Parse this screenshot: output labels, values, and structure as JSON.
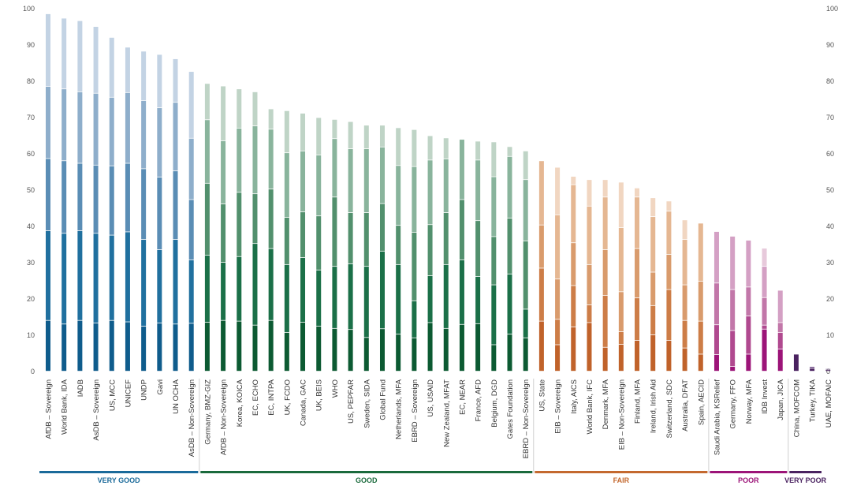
{
  "chart_data": {
    "type": "bar",
    "stacked": true,
    "title": "",
    "xlabel": "",
    "ylabel": "",
    "ylim": [
      0,
      100
    ],
    "yticks": [
      0,
      10,
      20,
      30,
      40,
      50,
      60,
      70,
      80,
      90,
      100
    ],
    "y_axis_sides": "left and right",
    "grid": false,
    "groups": [
      {
        "label": "VERY GOOD",
        "color": "#1a6a9a",
        "shades": [
          "#0f5c8c",
          "#20709f",
          "#5a8db5",
          "#8eaecb",
          "#c3d3e4"
        ],
        "bars": [
          {
            "name": "AfDB – Sovereign",
            "segments": [
              14,
              24.7,
              19.9,
              19.9,
              20.0
            ]
          },
          {
            "name": "World Bank, IDA",
            "segments": [
              13,
              25,
              20,
              19.8,
              19.5
            ]
          },
          {
            "name": "IADB",
            "segments": [
              14,
              24.7,
              18.6,
              19.7,
              19.6
            ]
          },
          {
            "name": "AsDB – Sovereign",
            "segments": [
              13.3,
              24.7,
              18.8,
              19.8,
              18.4
            ]
          },
          {
            "name": "US, MCC",
            "segments": [
              14,
              23.5,
              19.1,
              18.9,
              16.5
            ]
          },
          {
            "name": "UNICEF",
            "segments": [
              13.6,
              24.8,
              18.9,
              19.5,
              12.5
            ]
          },
          {
            "name": "UNDP",
            "segments": [
              12.4,
              23.9,
              19.5,
              18.8,
              13.6
            ]
          },
          {
            "name": "Gavi",
            "segments": [
              13.3,
              20.2,
              20,
              19.1,
              14.7
            ]
          },
          {
            "name": "UN OCHA",
            "segments": [
              13,
              23.3,
              18.9,
              18.9,
              12
            ]
          },
          {
            "name": "AsDB – Non-Sovereign",
            "segments": [
              13.2,
              17.5,
              16.6,
              16.9,
              18.4
            ]
          }
        ]
      },
      {
        "label": "GOOD",
        "color": "#1a6a3c",
        "shades": [
          "#0c5a32",
          "#1b7048",
          "#52906d",
          "#89b49c",
          "#bfd4c6"
        ],
        "bars": [
          {
            "name": "Germany, BMZ-GIZ",
            "segments": [
              13.5,
              18.5,
              19.8,
              17.5,
              10
            ]
          },
          {
            "name": "AfDB – Non-Sovereign",
            "segments": [
              14,
              16,
              16.1,
              17.4,
              15.1
            ]
          },
          {
            "name": "Korea, KOICA",
            "segments": [
              13.8,
              17.8,
              17.7,
              17.7,
              10.8
            ]
          },
          {
            "name": "EC, ECHO",
            "segments": [
              12.7,
              22.5,
              13.7,
              18.7,
              9.4
            ]
          },
          {
            "name": "EC, INTPA",
            "segments": [
              14,
              19.8,
              16.4,
              16.5,
              5.6
            ]
          },
          {
            "name": "UK, FCDO",
            "segments": [
              10.7,
              18.7,
              13,
              17.8,
              11.6
            ]
          },
          {
            "name": "Canada, GAC",
            "segments": [
              13.5,
              17.8,
              12.6,
              16.8,
              10.4
            ]
          },
          {
            "name": "UK, BEIS",
            "segments": [
              12.4,
              15.5,
              14.9,
              16.8,
              10.3
            ]
          },
          {
            "name": "WHO",
            "segments": [
              11.8,
              17.1,
              19.1,
              16.1,
              5.3
            ]
          },
          {
            "name": "US, PEPFAR",
            "segments": [
              11.5,
              18.1,
              14.1,
              17.6,
              7.5
            ]
          },
          {
            "name": "Sweden, SIDA",
            "segments": [
              9.3,
              19.6,
              14.8,
              17.6,
              6.5
            ]
          },
          {
            "name": "Global Fund",
            "segments": [
              11.7,
              21.4,
              13.1,
              15.6,
              6
            ]
          },
          {
            "name": "Netherlands, MFA",
            "segments": [
              10.2,
              19.2,
              10.8,
              16.5,
              10.4
            ]
          },
          {
            "name": "EBRD – Sovereign",
            "segments": [
              9.2,
              10.2,
              18.9,
              18.1,
              10.2
            ]
          },
          {
            "name": "US, USAID",
            "segments": [
              13.4,
              12.9,
              14.1,
              17.8,
              6.7
            ]
          },
          {
            "name": "New Zealand, MFAT",
            "segments": [
              11.8,
              17.6,
              14.3,
              14.8,
              5.8
            ]
          },
          {
            "name": "EC, NEAR",
            "segments": [
              12.9,
              17.8,
              16.6,
              16.6,
              0
            ]
          },
          {
            "name": "France, AFD",
            "segments": [
              13.1,
              13,
              15.4,
              16.7,
              5.2
            ]
          },
          {
            "name": "Belgium, DGD",
            "segments": [
              7.3,
              16.5,
              13.3,
              16.5,
              9.6
            ]
          },
          {
            "name": "Gates Foundation",
            "segments": [
              10.2,
              16.6,
              15.4,
              17,
              2.7
            ]
          },
          {
            "name": "EBRD – Non-Sovereign",
            "segments": [
              9.2,
              7.9,
              18.8,
              16.9,
              7.9
            ]
          }
        ]
      },
      {
        "label": "FAIR",
        "color": "#c4692f",
        "shades": [
          "#c0622a",
          "#cd7d47",
          "#d99b6c",
          "#e5b792",
          "#f1d6c1"
        ],
        "bars": [
          {
            "name": "US, State",
            "segments": [
              13.8,
              14.6,
              11.9,
              17.7,
              0
            ]
          },
          {
            "name": "EIB – Sovereign",
            "segments": [
              7.3,
              7,
              11.1,
              17.7,
              13.1
            ]
          },
          {
            "name": "Italy, AICS",
            "segments": [
              12.2,
              11.4,
              11.8,
              16,
              2.3
            ]
          },
          {
            "name": "World Bank, IFC",
            "segments": [
              13.4,
              4.9,
              11.1,
              16.1,
              7.3
            ]
          },
          {
            "name": "Denmark, MFA",
            "segments": [
              6.6,
              14.3,
              12.6,
              14.5,
              4.8
            ]
          },
          {
            "name": "EIB – Non-Sovereign",
            "segments": [
              7.4,
              3.5,
              11,
              17.7,
              12.5
            ]
          },
          {
            "name": "Finland, MFA",
            "segments": [
              8.5,
              11.7,
              13.6,
              14.2,
              2.5
            ]
          },
          {
            "name": "Ireland, Irish Aid",
            "segments": [
              10,
              8.1,
              9.2,
              15.3,
              5.2
            ]
          },
          {
            "name": "Switzerland, SDC",
            "segments": [
              8.5,
              14,
              9.7,
              11.9,
              2.8
            ]
          },
          {
            "name": "Australia, DFAT",
            "segments": [
              6.4,
              7.6,
              9.8,
              12.5,
              5.4
            ]
          },
          {
            "name": "Spain, AECID",
            "segments": [
              4.7,
              9.1,
              11,
              16,
              0
            ]
          }
        ]
      },
      {
        "label": "POOR",
        "color": "#9c1478",
        "shades": [
          "#9c1478",
          "#b0498f",
          "#c277a9",
          "#d4a0c4",
          "#e7c9db"
        ],
        "bars": [
          {
            "name": "Saudi Arabia, KSRelief",
            "segments": [
              4.6,
              8.2,
              11.5,
              14.2,
              0
            ]
          },
          {
            "name": "Germany, FFO",
            "segments": [
              1.3,
              9.9,
              11.3,
              14.7,
              0
            ]
          },
          {
            "name": "Norway, MFA",
            "segments": [
              4.7,
              10.5,
              8,
              12.9,
              0
            ]
          },
          {
            "name": "IDB Invest",
            "segments": [
              11.6,
              1.1,
              7.6,
              8.6,
              5
            ]
          },
          {
            "name": "Japan, JICA",
            "segments": [
              6.1,
              4.6,
              2.7,
              8.9,
              0
            ]
          }
        ]
      },
      {
        "label": "VERY POOR",
        "color": "#4a2260",
        "shades": [
          "#4a2260",
          "#6e4a85",
          "#9077a3",
          "#b3a2c2",
          "#d6cce0"
        ],
        "bars": [
          {
            "name": "China, MOFCOM",
            "segments": [
              4.7,
              0,
              0,
              0,
              0
            ]
          },
          {
            "name": "Turkey, TIKA",
            "segments": [
              0.8,
              0.5,
              0,
              0,
              0
            ]
          },
          {
            "name": "UAE, MOFAIC",
            "segments": [
              0.4,
              0.3,
              0,
              0,
              0
            ]
          }
        ]
      }
    ]
  }
}
